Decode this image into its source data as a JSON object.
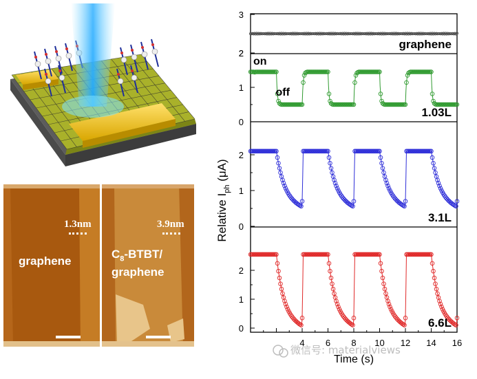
{
  "afm": {
    "left_thickness": "1.3nm",
    "left_label": "graphene",
    "right_thickness": "3.9nm",
    "right_label_line1_main": "C",
    "right_label_line1_sub": "8",
    "right_label_line1_rest": "-BTBT/",
    "right_label_line2": "graphene"
  },
  "watermark": "微信号: materialviews",
  "chart_data": {
    "type": "scatter",
    "x_label": "Time (s)",
    "y_label_main": "Relative I",
    "y_label_sub": "ph",
    "y_label_unit": " (μA)",
    "x_ticks": [
      4,
      6,
      8,
      10,
      12,
      14,
      16
    ],
    "xlim": [
      0,
      16
    ],
    "panels": [
      {
        "label": "graphene",
        "ylim": [
          2,
          3
        ],
        "y_ticks": [
          2,
          3
        ],
        "color": "#505050",
        "kind": "flat",
        "value": 2.5
      },
      {
        "label": "1.03L",
        "ylim": [
          0,
          2
        ],
        "y_ticks": [
          0,
          1,
          2
        ],
        "color": "#2f9a2f",
        "kind": "square",
        "high": 1.45,
        "low": 0.5,
        "on_text": "on",
        "off_text": "off"
      },
      {
        "label": "3.1L",
        "ylim": [
          0,
          2.5
        ],
        "y_ticks": [
          0,
          1,
          2
        ],
        "color": "#2d2dd8",
        "kind": "decay",
        "high": 2.1,
        "low": 0.7
      },
      {
        "label": "6.6L",
        "ylim": [
          0,
          3
        ],
        "y_ticks": [
          0,
          1,
          2
        ],
        "color": "#e02828",
        "kind": "decay",
        "high": 2.55,
        "low": 0.35
      }
    ]
  }
}
